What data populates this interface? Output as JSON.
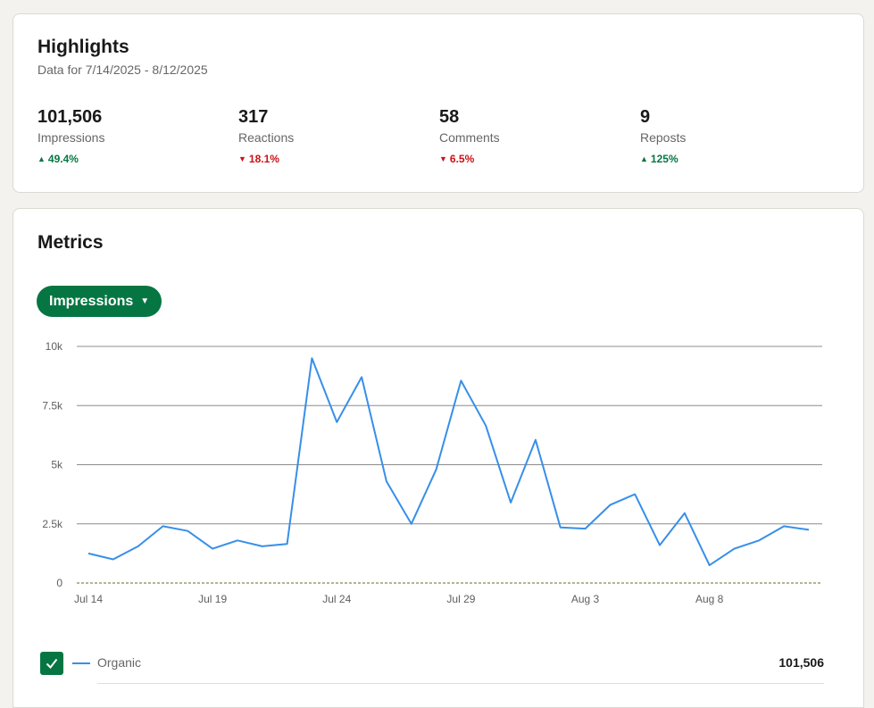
{
  "highlights": {
    "title": "Highlights",
    "date_range": "Data for 7/14/2025 - 8/12/2025",
    "stats": [
      {
        "value": "101,506",
        "label": "Impressions",
        "change": "49.4%",
        "direction": "up"
      },
      {
        "value": "317",
        "label": "Reactions",
        "change": "18.1%",
        "direction": "down"
      },
      {
        "value": "58",
        "label": "Comments",
        "change": "6.5%",
        "direction": "down"
      },
      {
        "value": "9",
        "label": "Reposts",
        "change": "125%",
        "direction": "up"
      }
    ]
  },
  "metrics": {
    "title": "Metrics",
    "dropdown_label": "Impressions",
    "legend": {
      "label": "Organic",
      "total": "101,506",
      "checked": true
    }
  },
  "colors": {
    "accent": "#057642",
    "series": "#378fe9",
    "negative": "#cc1016"
  },
  "chart_data": {
    "type": "line",
    "x": [
      "Jul 14",
      "Jul 15",
      "Jul 16",
      "Jul 17",
      "Jul 18",
      "Jul 19",
      "Jul 20",
      "Jul 21",
      "Jul 22",
      "Jul 23",
      "Jul 24",
      "Jul 25",
      "Jul 26",
      "Jul 27",
      "Jul 28",
      "Jul 29",
      "Jul 30",
      "Jul 31",
      "Aug 1",
      "Aug 2",
      "Aug 3",
      "Aug 4",
      "Aug 5",
      "Aug 6",
      "Aug 7",
      "Aug 8",
      "Aug 9",
      "Aug 10",
      "Aug 11",
      "Aug 12"
    ],
    "xticks": [
      "Jul 14",
      "Jul 19",
      "Jul 24",
      "Jul 29",
      "Aug 3",
      "Aug 8"
    ],
    "yticks": [
      "0",
      "2.5k",
      "5k",
      "7.5k",
      "10k"
    ],
    "ylim": [
      0,
      10000
    ],
    "grid": true,
    "series": [
      {
        "name": "Organic",
        "values": [
          1250,
          1000,
          1550,
          2400,
          2200,
          1450,
          1800,
          1550,
          1650,
          9500,
          6800,
          8700,
          4300,
          2500,
          4800,
          8550,
          6650,
          3400,
          6050,
          2350,
          2300,
          3300,
          3750,
          1600,
          2950,
          750,
          1450,
          1800,
          2400,
          2250
        ]
      }
    ]
  }
}
